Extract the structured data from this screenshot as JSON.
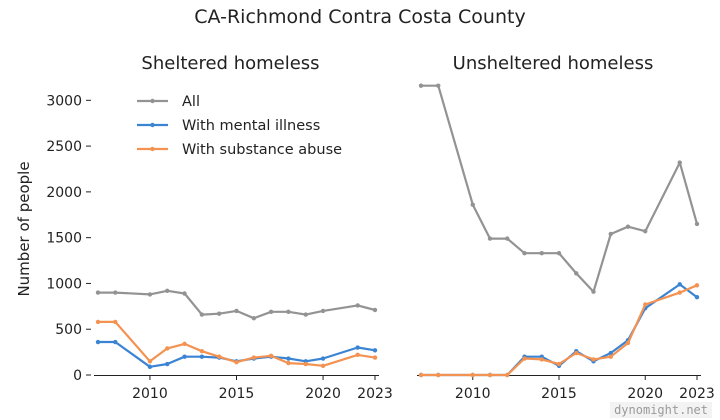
{
  "figure": {
    "title": "CA-Richmond Contra Costa County",
    "watermark": "dynomight.net"
  },
  "chart_data": [
    {
      "type": "line",
      "title": "Sheltered homeless",
      "ylabel": "Number of people",
      "xlim": [
        2007,
        2023
      ],
      "ylim": [
        0,
        3200
      ],
      "xticks": [
        2010,
        2015,
        2020,
        2023
      ],
      "yticks": [
        0,
        500,
        1000,
        1500,
        2000,
        2500,
        3000
      ],
      "legend": {
        "position": "top-left",
        "entries": [
          "All",
          "With mental illness",
          "With substance abuse"
        ]
      },
      "x": [
        2007,
        2008,
        2010,
        2011,
        2012,
        2013,
        2014,
        2015,
        2016,
        2017,
        2018,
        2019,
        2020,
        2022,
        2023
      ],
      "series": [
        {
          "name": "All",
          "color": "#939393",
          "values": [
            900,
            900,
            880,
            920,
            890,
            660,
            670,
            700,
            620,
            690,
            690,
            660,
            700,
            760,
            710
          ]
        },
        {
          "name": "With mental illness",
          "color": "#3b84d4",
          "values": [
            360,
            360,
            90,
            120,
            200,
            200,
            190,
            150,
            180,
            200,
            180,
            150,
            180,
            300,
            270
          ]
        },
        {
          "name": "With substance abuse",
          "color": "#f49251",
          "values": [
            580,
            580,
            150,
            290,
            340,
            260,
            200,
            140,
            190,
            210,
            130,
            120,
            100,
            220,
            190
          ]
        }
      ]
    },
    {
      "type": "line",
      "title": "Unsheltered homeless",
      "xlim": [
        2007,
        2023
      ],
      "ylim": [
        0,
        3200
      ],
      "xticks": [
        2010,
        2015,
        2020,
        2023
      ],
      "x": [
        2007,
        2008,
        2010,
        2011,
        2012,
        2013,
        2014,
        2015,
        2016,
        2017,
        2018,
        2019,
        2020,
        2022,
        2023
      ],
      "series": [
        {
          "name": "All",
          "color": "#939393",
          "values": [
            3160,
            3160,
            1860,
            1490,
            1490,
            1330,
            1330,
            1330,
            1110,
            910,
            1540,
            1620,
            1570,
            2320,
            1650
          ]
        },
        {
          "name": "With mental illness",
          "color": "#3b84d4",
          "values": [
            0,
            0,
            0,
            0,
            0,
            200,
            200,
            100,
            260,
            150,
            240,
            380,
            730,
            990,
            850
          ]
        },
        {
          "name": "With substance abuse",
          "color": "#f49251",
          "values": [
            0,
            0,
            0,
            0,
            0,
            180,
            170,
            120,
            240,
            170,
            200,
            350,
            770,
            900,
            980
          ]
        }
      ]
    }
  ]
}
